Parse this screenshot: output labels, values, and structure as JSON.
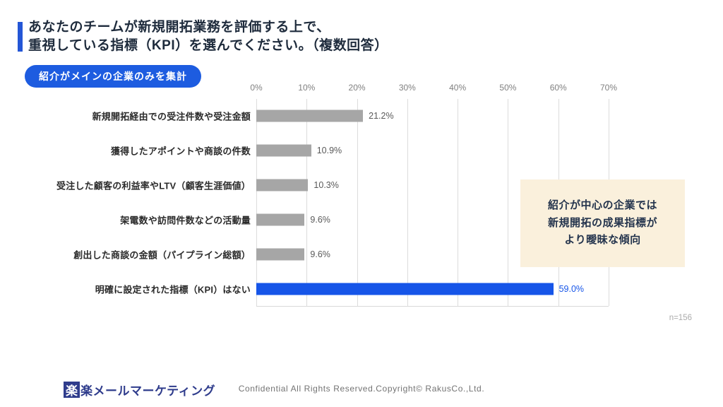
{
  "slide": {
    "title_line1": "あなたのチームが新規開拓業務を評価する上で、",
    "title_line2": "重視している指標（KPI）を選んでください。（複数回答）",
    "badge": "紹介がメインの企業のみを集計",
    "sample_size": "n=156",
    "annotation": {
      "line1": "紹介が中心の企業では",
      "line2": "新規開拓の成果指標が",
      "line3": "より曖昧な傾向"
    },
    "footer": {
      "logo_mark": "楽",
      "logo_text": "楽メールマーケティング",
      "copyright": "Confidential All Rights Reserved.Copyright© RakusCo.,Ltd."
    }
  },
  "colors": {
    "accent_blue": "#2456D6",
    "badge_blue": "#1D5CE0",
    "highlight_bar_blue": "#1655E8",
    "default_bar_gray": "#A6A6A6",
    "annotation_bg": "#FAF0DC",
    "gridline": "#DCDCDC",
    "title_text": "#1E2B3C"
  },
  "chart_data": {
    "type": "bar",
    "orientation": "horizontal",
    "title": "あなたのチームが新規開拓業務を評価する上で、重視している指標（KPI）を選んでください。（複数回答）",
    "subtitle": "紹介がメインの企業のみを集計",
    "categories": [
      "新規開拓経由での受注件数や受注金額",
      "獲得したアポイントや商談の件数",
      "受注した顧客の利益率やLTV（顧客生涯価値）",
      "架電数や訪問件数などの活動量",
      "創出した商談の金額（パイプライン総額）",
      "明確に設定された指標（KPI）はない"
    ],
    "values": [
      21.2,
      10.9,
      10.3,
      9.6,
      9.6,
      59.0
    ],
    "value_labels": [
      "21.2%",
      "10.9%",
      "10.3%",
      "9.6%",
      "9.6%",
      "59.0%"
    ],
    "highlight_index": 5,
    "bar_color": "#A6A6A6",
    "highlight_color": "#1655E8",
    "highlight_value_color": "#1655E8",
    "value_color": "#595959",
    "xlim": [
      0,
      70
    ],
    "ticks": [
      "0%",
      "10%",
      "20%",
      "30%",
      "40%",
      "50%",
      "60%",
      "70%"
    ],
    "grid": true,
    "annotation_note": "紹介が中心の企業では新規開拓の成果指標がより曖昧な傾向",
    "sample_size": "n=156"
  }
}
